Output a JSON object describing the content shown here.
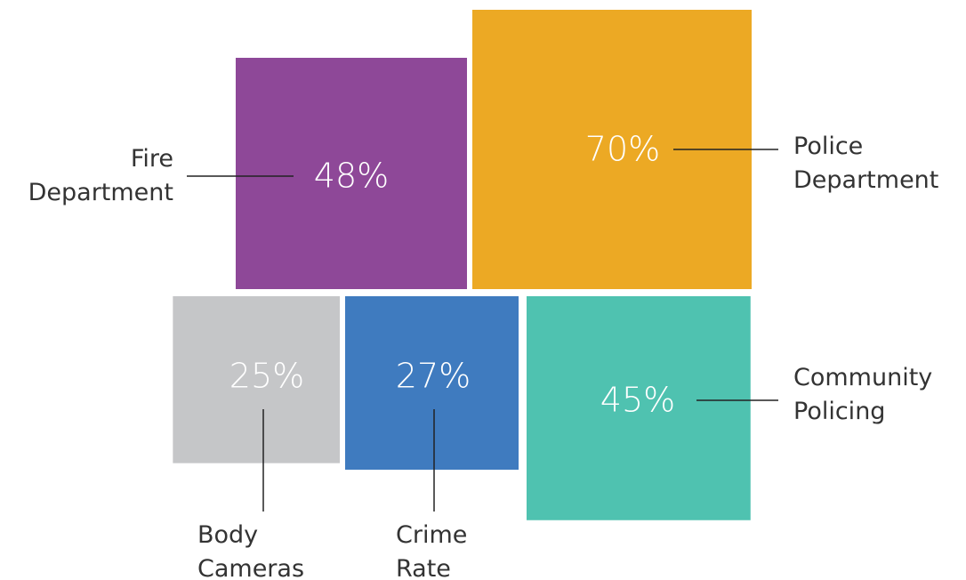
{
  "chart_data": {
    "type": "squares",
    "categories": [
      "Fire Department",
      "Police Department",
      "Body Cameras",
      "Crime Rate",
      "Community Policing"
    ],
    "values": [
      48,
      70,
      25,
      27,
      45
    ],
    "value_labels": [
      "48%",
      "70%",
      "25%",
      "27%",
      "45%"
    ],
    "colors": [
      "#8e4898",
      "#eca924",
      "#c5c6c8",
      "#3f7bbf",
      "#4fc2b0"
    ]
  }
}
